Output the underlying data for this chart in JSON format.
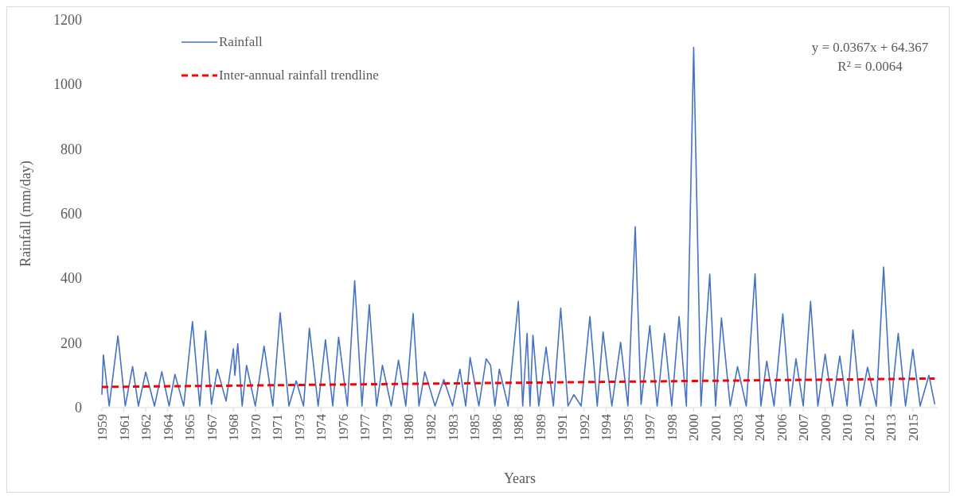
{
  "chart_data": {
    "type": "line",
    "xlabel": "Years",
    "ylabel": "Rainfall (mm/day)",
    "xlim": [
      1959,
      2016.2
    ],
    "ylim": [
      0,
      1200
    ],
    "yticks": [
      0,
      200,
      400,
      600,
      800,
      1000,
      1200
    ],
    "xticks": [
      {
        "value": 1959,
        "label": "1959"
      },
      {
        "value": 1960.5,
        "label": "1961"
      },
      {
        "value": 1962,
        "label": "1962"
      },
      {
        "value": 1963.5,
        "label": "1964"
      },
      {
        "value": 1965,
        "label": "1965"
      },
      {
        "value": 1966.5,
        "label": "1967"
      },
      {
        "value": 1968,
        "label": "1968"
      },
      {
        "value": 1969.5,
        "label": "1970"
      },
      {
        "value": 1971,
        "label": "1971"
      },
      {
        "value": 1972.5,
        "label": "1973"
      },
      {
        "value": 1974,
        "label": "1974"
      },
      {
        "value": 1975.5,
        "label": "1976"
      },
      {
        "value": 1977,
        "label": "1977"
      },
      {
        "value": 1978.5,
        "label": "1979"
      },
      {
        "value": 1980,
        "label": "1980"
      },
      {
        "value": 1981.5,
        "label": "1982"
      },
      {
        "value": 1983,
        "label": "1983"
      },
      {
        "value": 1984.5,
        "label": "1985"
      },
      {
        "value": 1986,
        "label": "1986"
      },
      {
        "value": 1987.5,
        "label": "1988"
      },
      {
        "value": 1989,
        "label": "1989"
      },
      {
        "value": 1990.5,
        "label": "1991"
      },
      {
        "value": 1992,
        "label": "1992"
      },
      {
        "value": 1993.5,
        "label": "1994"
      },
      {
        "value": 1995,
        "label": "1995"
      },
      {
        "value": 1996.5,
        "label": "1997"
      },
      {
        "value": 1998,
        "label": "1998"
      },
      {
        "value": 1999.5,
        "label": "2000"
      },
      {
        "value": 2001,
        "label": "2001"
      },
      {
        "value": 2002.5,
        "label": "2003"
      },
      {
        "value": 2004,
        "label": "2004"
      },
      {
        "value": 2005.5,
        "label": "2006"
      },
      {
        "value": 2007,
        "label": "2007"
      },
      {
        "value": 2008.5,
        "label": "2009"
      },
      {
        "value": 2010,
        "label": "2010"
      },
      {
        "value": 2011.5,
        "label": "2012"
      },
      {
        "value": 2013,
        "label": "2013"
      },
      {
        "value": 2014.5,
        "label": "2015"
      }
    ],
    "grid": false,
    "legend": "top left",
    "annotations": [
      "y = 0.0367x + 64.367",
      "R² = 0.0064"
    ],
    "series": [
      {
        "name": "Rainfall",
        "color": "#4472c4",
        "line_style": "solid",
        "x": [
          1959.0,
          1959.1,
          1959.5,
          1960.1,
          1960.6,
          1961.1,
          1961.5,
          1962.0,
          1962.6,
          1963.1,
          1963.6,
          1964.0,
          1964.6,
          1965.2,
          1965.7,
          1966.1,
          1966.5,
          1966.9,
          1967.5,
          1968.0,
          1968.1,
          1968.3,
          1968.6,
          1968.9,
          1969.5,
          1970.1,
          1970.7,
          1971.2,
          1971.8,
          1972.3,
          1972.8,
          1973.2,
          1973.8,
          1974.3,
          1974.8,
          1975.2,
          1975.8,
          1976.3,
          1976.8,
          1977.3,
          1977.8,
          1978.2,
          1978.8,
          1979.3,
          1979.8,
          1980.3,
          1980.7,
          1981.1,
          1981.8,
          1982.4,
          1983.0,
          1983.5,
          1983.9,
          1984.2,
          1984.8,
          1985.3,
          1985.6,
          1985.9,
          1986.2,
          1986.8,
          1987.5,
          1987.8,
          1988.1,
          1988.3,
          1988.5,
          1988.9,
          1989.4,
          1989.9,
          1990.4,
          1990.9,
          1991.3,
          1991.8,
          1992.4,
          1992.9,
          1993.3,
          1993.9,
          1994.5,
          1995.0,
          1995.5,
          1995.9,
          1996.5,
          1997.0,
          1997.5,
          1998.0,
          1998.5,
          1999.0,
          1999.5,
          2000.0,
          2000.6,
          2001.0,
          2001.4,
          2002.0,
          2002.5,
          2003.1,
          2003.7,
          2004.1,
          2004.5,
          2005.0,
          2005.6,
          2006.1,
          2006.5,
          2007.0,
          2007.5,
          2008.0,
          2008.5,
          2009.0,
          2009.5,
          2010.0,
          2010.4,
          2010.9,
          2011.4,
          2012.0,
          2012.5,
          2013.0,
          2013.5,
          2014.0,
          2014.5,
          2015.0,
          2015.6,
          2016.0
        ],
        "values": [
          40,
          163,
          5,
          222,
          5,
          127,
          5,
          110,
          5,
          111,
          5,
          103,
          5,
          266,
          5,
          238,
          10,
          119,
          20,
          182,
          100,
          198,
          5,
          131,
          5,
          190,
          5,
          294,
          5,
          83,
          5,
          246,
          5,
          210,
          5,
          218,
          5,
          393,
          5,
          319,
          5,
          131,
          5,
          147,
          5,
          291,
          5,
          111,
          5,
          87,
          5,
          119,
          5,
          155,
          5,
          151,
          131,
          5,
          119,
          5,
          329,
          5,
          230,
          5,
          224,
          5,
          187,
          5,
          308,
          5,
          40,
          5,
          282,
          5,
          234,
          5,
          202,
          5,
          560,
          10,
          254,
          5,
          230,
          5,
          282,
          5,
          1115,
          5,
          413,
          5,
          278,
          5,
          127,
          5,
          414,
          5,
          144,
          5,
          290,
          5,
          151,
          5,
          329,
          5,
          165,
          5,
          160,
          5,
          240,
          5,
          125,
          5,
          435,
          5,
          230,
          5,
          180,
          5,
          100,
          10
        ]
      },
      {
        "name": "Inter-annual rainfall trendline",
        "type": "line",
        "color": "#ff0000",
        "line_style": "dashed",
        "x": [
          1959,
          2016
        ],
        "values": [
          64,
          90
        ]
      }
    ]
  }
}
